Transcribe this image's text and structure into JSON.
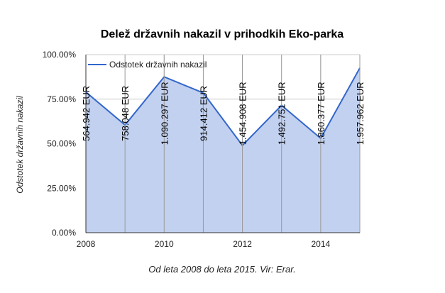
{
  "chart_data": {
    "type": "area",
    "title": "Delež državnih nakazil v prihodkih Eko-parka",
    "xlabel": "Od leta 2008 do leta 2015. Vir: Erar.",
    "ylabel": "Odstotek državnih nakazil",
    "x": [
      2008,
      2009,
      2010,
      2011,
      2012,
      2013,
      2014,
      2015
    ],
    "x_ticks": [
      2008,
      2010,
      2012,
      2014
    ],
    "x_tick_labels": [
      "2008",
      "2010",
      "2012",
      "2014"
    ],
    "xlim": [
      2008,
      2015
    ],
    "ylim": [
      0,
      1
    ],
    "y_ticks": [
      0,
      0.25,
      0.5,
      0.75,
      1
    ],
    "y_tick_labels": [
      "0.00%",
      "25.00%",
      "50.00%",
      "75.00%",
      "100.00%"
    ],
    "series": [
      {
        "name": "Odstotek državnih nakazil",
        "values": [
          0.79,
          0.605,
          0.875,
          0.785,
          0.49,
          0.715,
          0.53,
          0.925
        ]
      }
    ],
    "annotations": [
      "564.942 EUR",
      "758.048 EUR",
      "1.090.297 EUR",
      "914.412 EUR",
      "1.454.908 EUR",
      "1.492.751 EUR",
      "1.860.377 EUR",
      "1.957.962 EUR"
    ],
    "grid": true,
    "legend_position": "top-left",
    "colors": {
      "line": "#3366cc",
      "area": "#c2d1ef",
      "gridline": "#cccccc",
      "annotation_rule": "#999999",
      "axis": "#333333",
      "text": "#222222"
    }
  }
}
